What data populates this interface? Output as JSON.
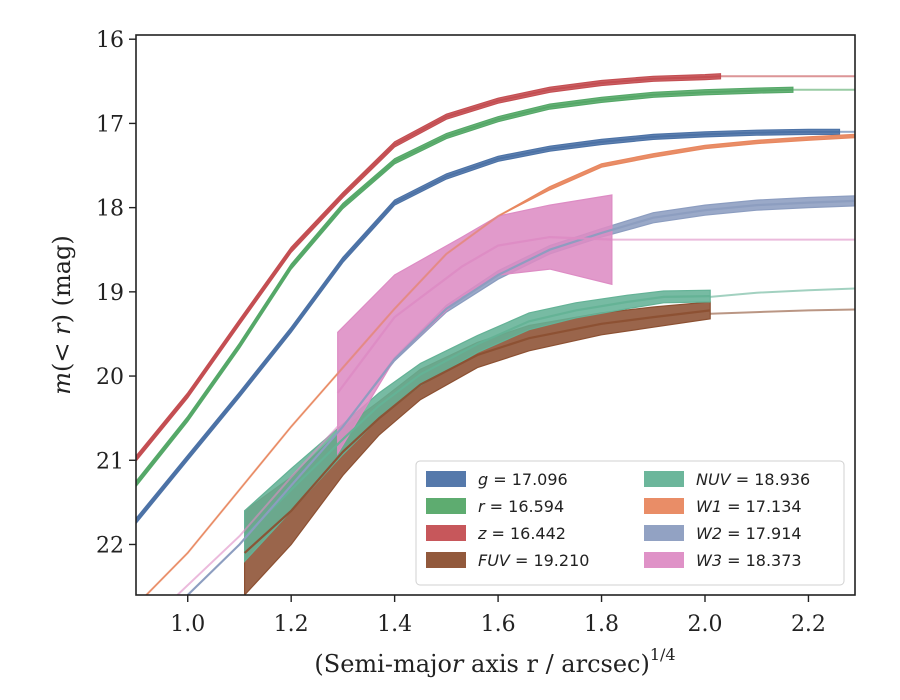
{
  "chart_data": {
    "type": "line",
    "xlabel": "(Semi-major axis r / arcsec)^1/4",
    "ylabel": "m(< r) (mag)",
    "xlim": [
      0.9,
      2.29
    ],
    "ylim": [
      22.6,
      15.95
    ],
    "y_inverted": true,
    "x_ticks": [
      "1.0",
      "1.2",
      "1.4",
      "1.6",
      "1.8",
      "2.0",
      "2.2"
    ],
    "y_ticks": [
      "16",
      "17",
      "18",
      "19",
      "20",
      "21",
      "22"
    ],
    "grid": false,
    "legend_placement": "lower-right",
    "series": [
      {
        "name": "g = 17.096",
        "color": "#4c72a6",
        "x": [
          0.9,
          1.0,
          1.1,
          1.2,
          1.3,
          1.4,
          1.5,
          1.6,
          1.7,
          1.8,
          1.9,
          2.0,
          2.1,
          2.2,
          2.26
        ],
        "y": [
          21.72,
          20.97,
          20.22,
          19.45,
          18.62,
          17.94,
          17.63,
          17.42,
          17.3,
          17.22,
          17.16,
          17.13,
          17.11,
          17.1,
          17.1
        ],
        "halfwidth": [
          0.03,
          0.03,
          0.03,
          0.03,
          0.03,
          0.03,
          0.03,
          0.03,
          0.03,
          0.03,
          0.03,
          0.03,
          0.03,
          0.03,
          0.03
        ],
        "ext_x": [
          2.26,
          2.29
        ],
        "ext_y": [
          17.1,
          17.1
        ]
      },
      {
        "name": "r = 16.594",
        "color": "#55a868",
        "x": [
          0.9,
          1.0,
          1.1,
          1.2,
          1.3,
          1.4,
          1.5,
          1.6,
          1.7,
          1.8,
          1.9,
          2.0,
          2.1,
          2.17
        ],
        "y": [
          21.28,
          20.51,
          19.64,
          18.7,
          17.98,
          17.45,
          17.15,
          16.95,
          16.8,
          16.72,
          16.66,
          16.63,
          16.61,
          16.6
        ],
        "halfwidth": [
          0.03,
          0.03,
          0.03,
          0.03,
          0.03,
          0.03,
          0.03,
          0.03,
          0.03,
          0.03,
          0.03,
          0.03,
          0.03,
          0.03
        ],
        "ext_x": [
          2.17,
          2.29
        ],
        "ext_y": [
          16.6,
          16.6
        ]
      },
      {
        "name": "z = 16.442",
        "color": "#c44e52",
        "x": [
          0.9,
          1.0,
          1.1,
          1.2,
          1.3,
          1.4,
          1.5,
          1.6,
          1.7,
          1.8,
          1.9,
          2.0,
          2.03
        ],
        "y": [
          20.98,
          20.23,
          19.36,
          18.5,
          17.85,
          17.25,
          16.92,
          16.73,
          16.6,
          16.52,
          16.47,
          16.45,
          16.44
        ],
        "halfwidth": [
          0.03,
          0.03,
          0.03,
          0.03,
          0.03,
          0.03,
          0.03,
          0.03,
          0.03,
          0.03,
          0.03,
          0.03,
          0.03
        ],
        "ext_x": [
          2.03,
          2.29
        ],
        "ext_y": [
          16.44,
          16.44
        ]
      },
      {
        "name": "FUV = 19.210",
        "color": "#8c5032",
        "x": [
          1.11,
          1.2,
          1.3,
          1.37,
          1.45,
          1.56,
          1.66,
          1.8,
          1.9,
          2.01
        ],
        "y": [
          22.1,
          21.6,
          20.9,
          20.5,
          20.1,
          19.75,
          19.55,
          19.38,
          19.3,
          19.22
        ],
        "halfwidth": [
          0.5,
          0.4,
          0.28,
          0.2,
          0.18,
          0.15,
          0.15,
          0.13,
          0.12,
          0.1
        ],
        "ext_x": [
          2.01,
          2.1,
          2.2,
          2.29
        ],
        "ext_y": [
          19.26,
          19.24,
          19.22,
          19.21
        ]
      },
      {
        "name": "NUV = 18.936",
        "color": "#64b296",
        "x": [
          1.11,
          1.2,
          1.3,
          1.37,
          1.45,
          1.56,
          1.66,
          1.75,
          1.85,
          1.92,
          2.01
        ],
        "y": [
          21.9,
          21.35,
          20.75,
          20.35,
          19.98,
          19.62,
          19.35,
          19.22,
          19.12,
          19.06,
          19.05
        ],
        "halfwidth": [
          0.3,
          0.25,
          0.18,
          0.15,
          0.13,
          0.1,
          0.1,
          0.09,
          0.08,
          0.07,
          0.07
        ],
        "ext_x": [
          2.01,
          2.1,
          2.2,
          2.29
        ],
        "ext_y": [
          19.06,
          19.01,
          18.98,
          18.96
        ]
      },
      {
        "name": "W1 = 17.134",
        "color": "#e8875f",
        "x": [
          0.92,
          1.0,
          1.1,
          1.2,
          1.3,
          1.4,
          1.5,
          1.6,
          1.7,
          1.8,
          1.9,
          2.0,
          2.1,
          2.2,
          2.29
        ],
        "y": [
          22.6,
          22.1,
          21.35,
          20.6,
          19.9,
          19.2,
          18.55,
          18.1,
          17.77,
          17.5,
          17.38,
          17.28,
          17.22,
          17.18,
          17.15
        ],
        "halfwidth": [
          0,
          0,
          0,
          0,
          0,
          0,
          0,
          0,
          0.02,
          0.02,
          0.02,
          0.02,
          0.02,
          0.02,
          0.02
        ],
        "ext_x": [],
        "ext_y": []
      },
      {
        "name": "W2 = 17.914",
        "color": "#8c9dc0",
        "x": [
          1.0,
          1.1,
          1.2,
          1.3,
          1.4,
          1.5,
          1.6,
          1.7,
          1.8,
          1.9,
          2.0,
          2.1,
          2.2,
          2.29
        ],
        "y": [
          22.6,
          22.0,
          21.3,
          20.6,
          19.8,
          19.2,
          18.8,
          18.5,
          18.3,
          18.12,
          18.03,
          17.97,
          17.94,
          17.92
        ],
        "halfwidth": [
          0,
          0,
          0,
          0,
          0.02,
          0.04,
          0.05,
          0.05,
          0.05,
          0.06,
          0.06,
          0.06,
          0.06,
          0.06
        ],
        "ext_x": [],
        "ext_y": []
      },
      {
        "name": "W3 = 18.373",
        "color": "#dd8cc4",
        "x": [
          1.29,
          1.4,
          1.53,
          1.6,
          1.7,
          1.82
        ],
        "y": [
          20.2,
          19.3,
          18.7,
          18.45,
          18.35,
          18.38
        ],
        "halfwidth": [
          0.72,
          0.5,
          0.35,
          0.35,
          0.38,
          0.53
        ],
        "lead_x": [
          0.98,
          1.1,
          1.2,
          1.29
        ],
        "lead_y": [
          22.6,
          21.9,
          21.2,
          20.6
        ],
        "ext_x": [
          1.82,
          2.29
        ],
        "ext_y": [
          18.38,
          18.38
        ]
      }
    ]
  }
}
